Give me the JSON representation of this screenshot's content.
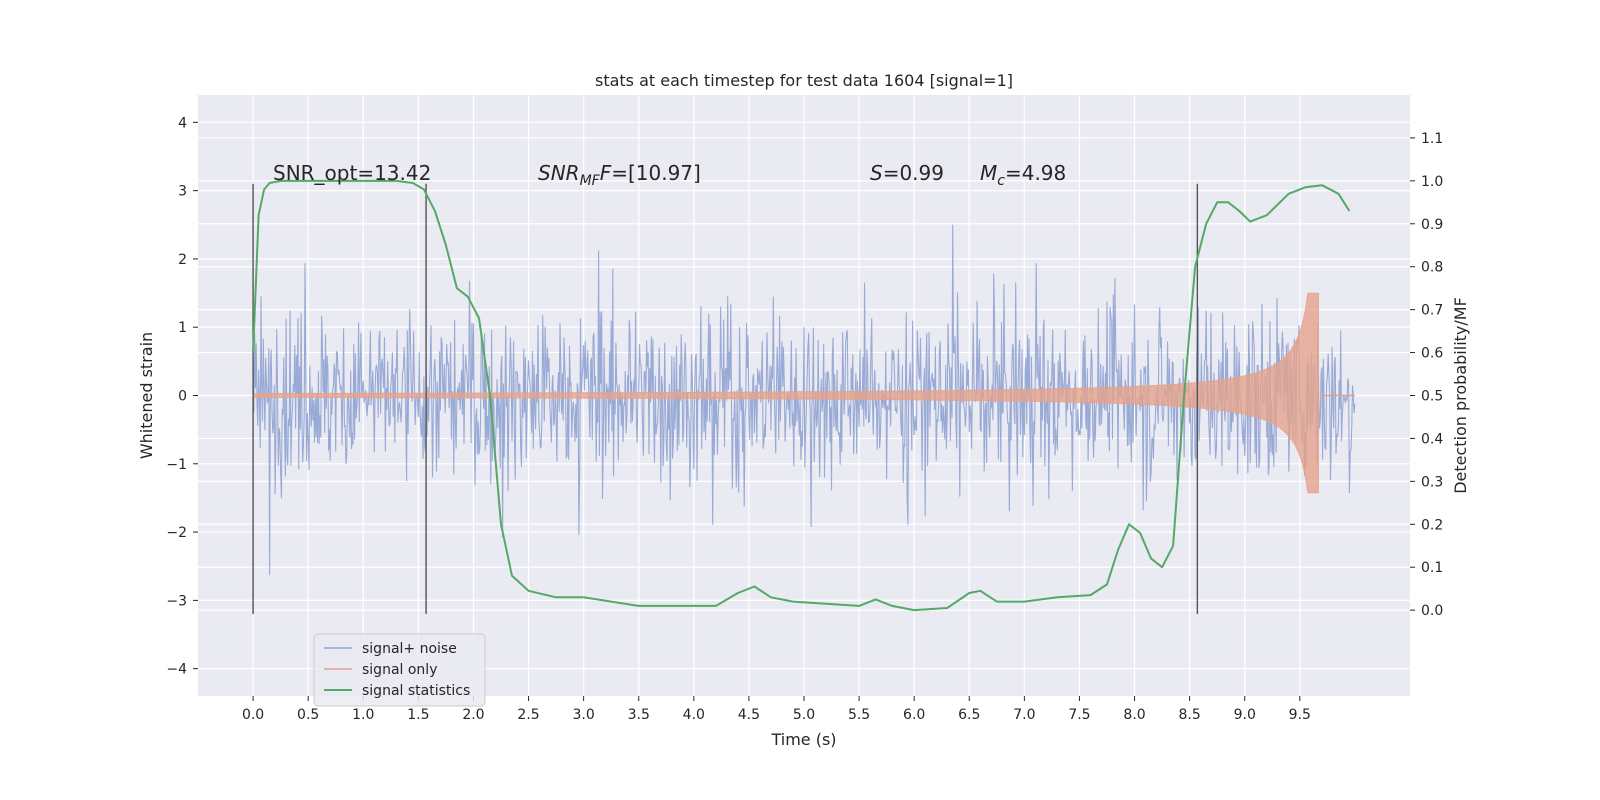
{
  "chart_data": {
    "type": "line",
    "title": "stats at each timestep for test data 1604 [signal=1]",
    "xlabel": "Time (s)",
    "ylabel": "Whitened strain",
    "y2label": "Detection probability/MF",
    "xlim": [
      -0.5,
      10.5
    ],
    "ylim": [
      -4.4,
      4.4
    ],
    "y2lim": [
      -0.2,
      1.2
    ],
    "xticks": [
      "0.0",
      "0.5",
      "1.0",
      "1.5",
      "2.0",
      "2.5",
      "3.0",
      "3.5",
      "4.0",
      "4.5",
      "5.0",
      "5.5",
      "6.0",
      "6.5",
      "7.0",
      "7.5",
      "8.0",
      "8.5",
      "9.0",
      "9.5"
    ],
    "yticks": [
      "4",
      "3",
      "2",
      "1",
      "0",
      "−1",
      "−2",
      "−3",
      "−4"
    ],
    "y2ticks": [
      "1.1",
      "1.0",
      "0.9",
      "0.8",
      "0.7",
      "0.6",
      "0.5",
      "0.4",
      "0.3",
      "0.2",
      "0.1",
      "0.0"
    ],
    "grid": true,
    "legend_position": "lower-left",
    "annotations": {
      "snr_opt": "SNR_opt=13.42",
      "snr_mf_sym": "SNR",
      "snr_mf_sub": "MF",
      "snr_mf_val": "=[10.97]",
      "s_sym": "S",
      "s_val": "=0.99",
      "mc_sym": "M",
      "mc_sub": "c",
      "mc_val": "=4.98"
    },
    "vlines": [
      0.0,
      1.57,
      8.57
    ],
    "series": [
      {
        "name": "signal+ noise",
        "color": "#8fa3d1",
        "description_range": [
          -4.0,
          4.0
        ],
        "t_start": 0.0,
        "t_end": 10.0,
        "envelope": 1.15
      },
      {
        "name": "signal only",
        "color": "#e5a28b",
        "t_start": 0.0,
        "t_end": 9.67,
        "amplitude_start": 0.03,
        "amplitude_peak": 1.5
      },
      {
        "name": "signal statistics",
        "color": "#55a868",
        "axis": "right",
        "x": [
          0.0,
          0.05,
          0.1,
          0.15,
          0.25,
          0.5,
          1.0,
          1.3,
          1.45,
          1.55,
          1.65,
          1.75,
          1.85,
          1.95,
          2.05,
          2.15,
          2.25,
          2.35,
          2.5,
          2.75,
          3.0,
          3.5,
          4.0,
          4.2,
          4.4,
          4.55,
          4.7,
          4.9,
          5.2,
          5.5,
          5.65,
          5.8,
          6.0,
          6.3,
          6.5,
          6.6,
          6.75,
          7.0,
          7.3,
          7.6,
          7.75,
          7.85,
          7.95,
          8.05,
          8.15,
          8.25,
          8.35,
          8.45,
          8.55,
          8.65,
          8.75,
          8.85,
          8.95,
          9.05,
          9.2,
          9.4,
          9.55,
          9.7,
          9.85,
          9.95
        ],
        "y": [
          0.6,
          0.92,
          0.98,
          0.995,
          1.0,
          1.0,
          1.0,
          1.0,
          0.995,
          0.98,
          0.93,
          0.85,
          0.75,
          0.73,
          0.68,
          0.5,
          0.2,
          0.08,
          0.045,
          0.03,
          0.03,
          0.01,
          0.01,
          0.01,
          0.04,
          0.055,
          0.03,
          0.02,
          0.015,
          0.01,
          0.025,
          0.01,
          0.0,
          0.005,
          0.04,
          0.045,
          0.02,
          0.02,
          0.03,
          0.035,
          0.06,
          0.14,
          0.2,
          0.18,
          0.12,
          0.1,
          0.15,
          0.5,
          0.8,
          0.9,
          0.95,
          0.95,
          0.93,
          0.905,
          0.92,
          0.97,
          0.985,
          0.99,
          0.97,
          0.93
        ]
      }
    ]
  }
}
